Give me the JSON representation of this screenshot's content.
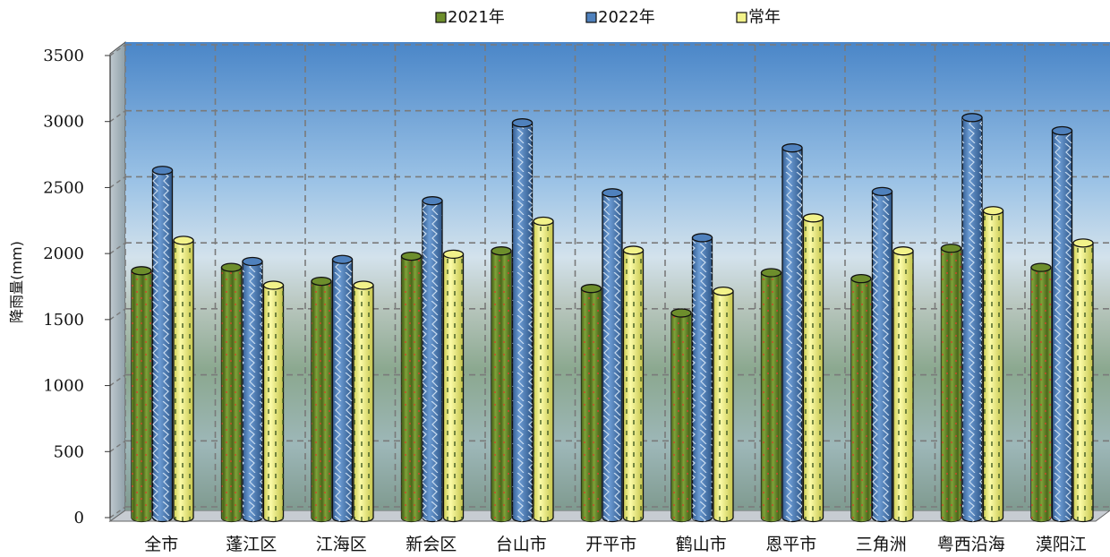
{
  "chart_data": {
    "type": "bar",
    "ylabel": "降雨量(mm)",
    "ylim": [
      0,
      3500
    ],
    "ytick_step": 500,
    "grid": true,
    "legend_position": "top-center",
    "categories": [
      "全市",
      "蓬江区",
      "江海区",
      "新会区",
      "台山市",
      "开平市",
      "鹤山市",
      "恩平市",
      "三角洲",
      "粤西沿海",
      "漠阳江"
    ],
    "series": [
      {
        "name": "2021年",
        "color": "#6d8e2c",
        "values": [
          1870,
          1895,
          1790,
          1980,
          2020,
          1735,
          1550,
          1855,
          1810,
          2040,
          1895
        ]
      },
      {
        "name": "2022年",
        "color": "#4f81bd",
        "values": [
          2630,
          1940,
          1955,
          2400,
          2990,
          2460,
          2120,
          2800,
          2470,
          3030,
          2930
        ]
      },
      {
        "name": "常年",
        "color": "#f2f28a",
        "values": [
          2100,
          1760,
          1760,
          1995,
          2245,
          2025,
          1715,
          2270,
          2020,
          2325,
          2080
        ]
      }
    ]
  }
}
